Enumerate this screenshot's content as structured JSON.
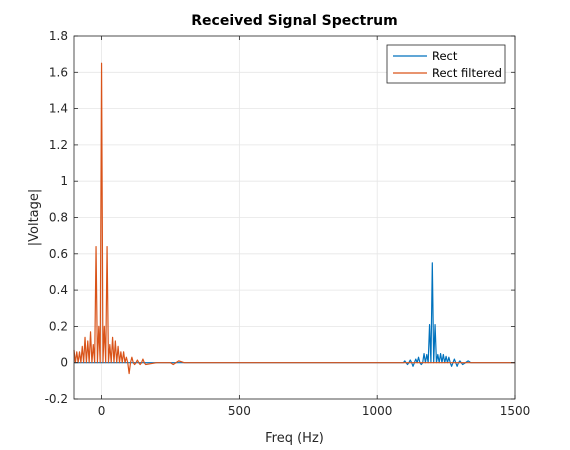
{
  "chart_data": {
    "type": "line",
    "title": "Received Signal Spectrum",
    "xlabel": "Freq (Hz)",
    "ylabel": "|Voltage|",
    "xlim": [
      -100,
      1500
    ],
    "ylim": [
      -0.2,
      1.8
    ],
    "xticks": [
      0,
      500,
      1000,
      1500
    ],
    "yticks": [
      -0.2,
      0,
      0.2,
      0.4,
      0.6,
      0.8,
      1,
      1.2,
      1.4,
      1.6,
      1.8
    ],
    "xtick_labels": [
      "0",
      "500",
      "1000",
      "1500"
    ],
    "ytick_labels": [
      "-0.2",
      "0",
      "0.2",
      "0.4",
      "0.6",
      "0.8",
      "1",
      "1.2",
      "1.4",
      "1.6",
      "1.8"
    ],
    "grid": true,
    "legend_position": "top-right",
    "series": [
      {
        "name": "Rect",
        "color": "#0072BD",
        "x": [
          -100,
          1095,
          1100,
          1105,
          1110,
          1115,
          1120,
          1125,
          1130,
          1135,
          1140,
          1145,
          1150,
          1155,
          1160,
          1165,
          1170,
          1175,
          1180,
          1185,
          1190,
          1195,
          1200,
          1205,
          1210,
          1215,
          1220,
          1225,
          1230,
          1235,
          1240,
          1245,
          1250,
          1255,
          1260,
          1265,
          1270,
          1275,
          1280,
          1285,
          1290,
          1295,
          1300,
          1305,
          1310,
          1320,
          1330,
          1340,
          1500
        ],
        "y": [
          0,
          0,
          0.01,
          0,
          -0.01,
          0,
          0.015,
          0,
          -0.02,
          0,
          0.02,
          0,
          0.03,
          0,
          -0.01,
          0,
          0.05,
          0,
          0.045,
          0,
          0.21,
          0,
          0.55,
          0,
          0.21,
          0,
          0.045,
          0,
          0.05,
          0,
          0.045,
          0,
          0.035,
          0,
          0.03,
          0,
          -0.02,
          0,
          0.02,
          0,
          -0.02,
          0,
          0.01,
          0,
          -0.01,
          0,
          0.01,
          0,
          0
        ]
      },
      {
        "name": "Rect filtered",
        "color": "#D95319",
        "x": [
          -100,
          -95,
          -90,
          -85,
          -80,
          -75,
          -70,
          -65,
          -60,
          -55,
          -50,
          -45,
          -40,
          -35,
          -30,
          -25,
          -20,
          -15,
          -10,
          -5,
          0,
          5,
          10,
          15,
          20,
          25,
          30,
          35,
          40,
          45,
          50,
          55,
          60,
          65,
          70,
          75,
          80,
          85,
          90,
          95,
          100,
          105,
          110,
          115,
          120,
          125,
          130,
          135,
          140,
          145,
          150,
          155,
          160,
          200,
          250,
          260,
          280,
          300,
          1500
        ],
        "y": [
          0.07,
          0,
          0.06,
          0,
          0.06,
          0,
          0.09,
          0,
          0.14,
          0,
          0.12,
          0,
          0.17,
          0,
          0.1,
          0,
          0.64,
          0,
          0.2,
          0,
          1.65,
          0,
          0.2,
          0,
          0.64,
          0,
          0.1,
          0,
          0.14,
          0,
          0.12,
          0,
          0.09,
          0,
          0.06,
          0,
          0.06,
          0,
          0.03,
          0,
          -0.06,
          0,
          0.03,
          0,
          -0.01,
          0,
          0.015,
          0,
          -0.01,
          0,
          0.02,
          0,
          -0.01,
          0,
          0,
          -0.01,
          0.01,
          0,
          0
        ]
      }
    ]
  }
}
